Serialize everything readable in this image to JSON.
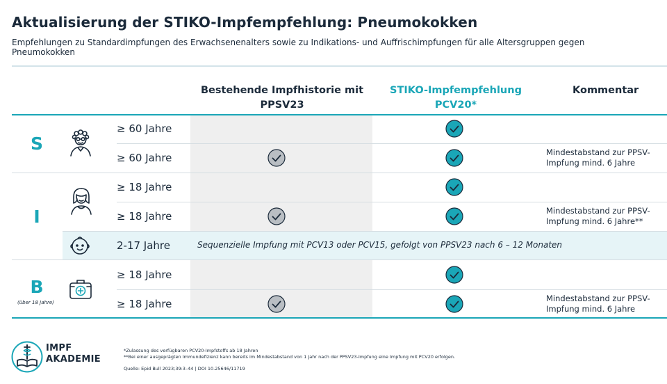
{
  "header": {
    "title": "Aktualisierung der STIKO-Impfempfehlung: Pneumokokken",
    "subtitle": "Empfehlungen zu Standardimpfungen des Erwachsenenalters sowie zu Indikations- und Auffrischimpfungen für alle Altersgruppen gegen Pneumokokken"
  },
  "table": {
    "columns": {
      "history": "Bestehende Impfhistorie mit PPSV23",
      "stiko": "STIKO-Impfempfehlung PCV20*",
      "comment": "Kommentar"
    },
    "groups": {
      "s": "S",
      "i": "I",
      "b": "B",
      "b_note": "(über 18 Jahre)"
    },
    "rows": [
      {
        "age": "≥ 60 Jahre",
        "history": false,
        "stiko": true,
        "comment": ""
      },
      {
        "age": "≥ 60 Jahre",
        "history": true,
        "stiko": true,
        "comment": "Mindestabstand zur PPSV-Impfung mind. 6 Jahre"
      },
      {
        "age": "≥ 18 Jahre",
        "history": false,
        "stiko": true,
        "comment": ""
      },
      {
        "age": "≥ 18 Jahre",
        "history": true,
        "stiko": true,
        "comment": "Mindestabstand zur PPSV-Impfung mind. 6 Jahre**"
      },
      {
        "age": "2-17 Jahre",
        "span_text": "Sequenzielle Impfung mit PCV13 oder PCV15, gefolgt von PPSV23 nach 6 – 12 Monaten"
      },
      {
        "age": "≥ 18 Jahre",
        "history": false,
        "stiko": true,
        "comment": ""
      },
      {
        "age": "≥ 18 Jahre",
        "history": true,
        "stiko": true,
        "comment": "Mindestabstand zur PPSV-Impfung mind. 6 Jahre"
      }
    ]
  },
  "footnotes": {
    "note1": "*Zulassung des verfügbaren PCV20-Impfstoffs ab 18 Jahren",
    "note2": "**Bei einer ausgeprägten Immundefizienz kann bereits im Mindestabstand von 1 Jahr nach der PPSV23-Impfung eine Impfung mit PCV20 erfolgen.",
    "source": "Quelle: Epid Bull 2023;39:3–44 | DOI 10.25646/11719"
  },
  "logo": {
    "line1": "IMPF",
    "line2": "AKADEMIE"
  },
  "colors": {
    "accent": "#1aa6b7",
    "text": "#1b2a3a",
    "gray_check": "#b9bec3",
    "column_bg": "#efefef",
    "highlight_row": "#e6f4f7"
  }
}
